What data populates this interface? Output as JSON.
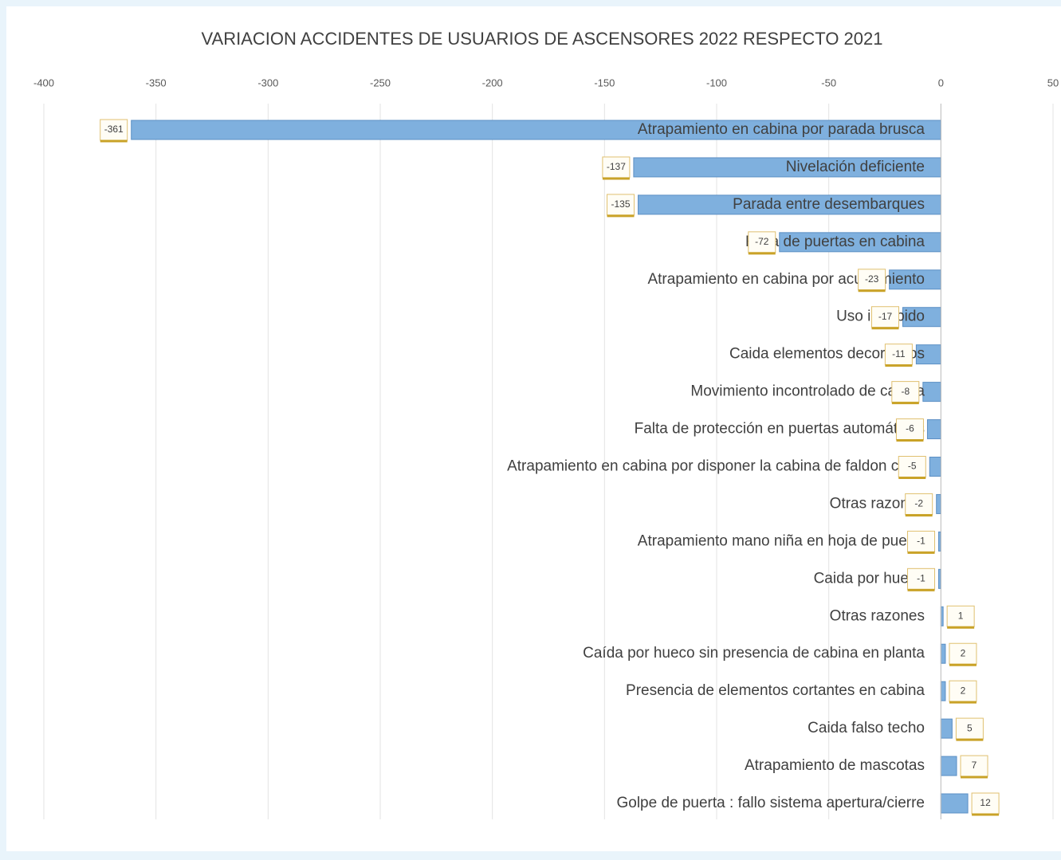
{
  "chart_data": {
    "type": "bar",
    "orientation": "horizontal",
    "title": "VARIACION ACCIDENTES DE USUARIOS DE ASCENSORES 2022 RESPECTO 2021",
    "categories": [
      "Atrapamiento en cabina por parada brusca",
      "Nivelación deficiente",
      "Parada entre desembarques",
      "Falta de puertas en cabina",
      "Atrapamiento en cabina por acuñamiento",
      "Uso indebido",
      "Caida elementos decorativos",
      "Movimiento incontrolado de cabina",
      "Falta de protección en puertas automáticas",
      "Atrapamiento en cabina por disponer la cabina de faldon corto",
      "Otras razones",
      "Atrapamiento mano niña en hoja de puerta",
      "Caida por hueco",
      "Otras razones",
      "Caída por hueco sin presencia de cabina en planta",
      "Presencia de elementos cortantes en cabina",
      "Caida falso techo",
      "Atrapamiento de mascotas",
      "Golpe de puerta : fallo sistema apertura/cierre"
    ],
    "values": [
      -361,
      -137,
      -135,
      -72,
      -23,
      -17,
      -11,
      -8,
      -6,
      -5,
      -2,
      -1,
      -1,
      1,
      2,
      2,
      5,
      7,
      12
    ],
    "color": "#7fb0de",
    "xlim": [
      -400,
      50
    ],
    "xticks": [
      -400,
      -350,
      -300,
      -250,
      -200,
      -150,
      -100,
      -50,
      0,
      50
    ],
    "grid": true
  }
}
